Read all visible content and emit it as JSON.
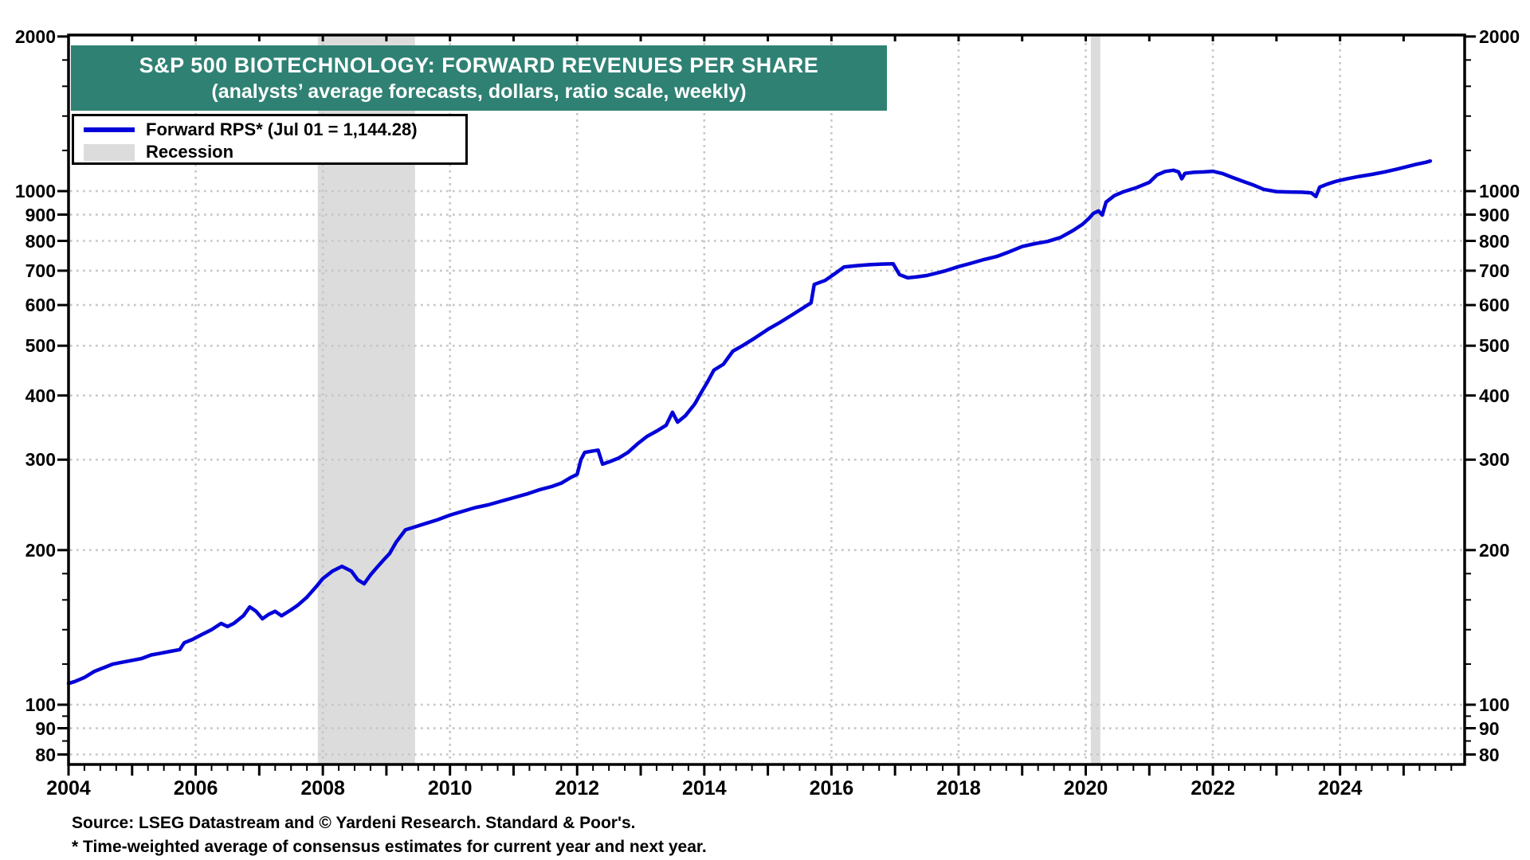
{
  "chart_data": {
    "type": "line",
    "title": "S&P 500 BIOTECHNOLOGY: FORWARD REVENUES PER SHARE",
    "subtitle": "(analysts’ average forecasts, dollars, ratio scale, weekly)",
    "legend": [
      {
        "label": "Forward RPS* (Jul 01 = 1,144.28)",
        "swatch": "line"
      },
      {
        "label": "Recession",
        "swatch": "band"
      }
    ],
    "colors": {
      "banner": "#2F8173",
      "series": "#0202D8",
      "recession": "#DCDCDC",
      "grid": "#C6C6C6",
      "axis": "#000000",
      "background": "#FFFFFF"
    },
    "y_axis": {
      "scale": "log",
      "range": [
        76,
        2050
      ],
      "sides": "both",
      "major_ticks": [
        80,
        90,
        100,
        200,
        300,
        400,
        500,
        600,
        700,
        800,
        900,
        1000,
        2000
      ],
      "minor_ticks": [
        85,
        95,
        120,
        140,
        160,
        180,
        1200,
        1400,
        1600,
        1800
      ]
    },
    "x_axis": {
      "range": [
        2004,
        2025.96
      ],
      "major_tick_step_years": 1,
      "minor_tick_step_years": 0.25,
      "label_years": [
        2004,
        2006,
        2008,
        2010,
        2012,
        2014,
        2016,
        2018,
        2020,
        2022,
        2024
      ]
    },
    "grid": {
      "h_values": [
        80,
        90,
        100,
        200,
        300,
        400,
        500,
        600,
        700,
        800,
        900,
        1000
      ],
      "v_years": [
        2006,
        2008,
        2010,
        2012,
        2014,
        2016,
        2018,
        2020,
        2022,
        2024
      ]
    },
    "recessions": [
      {
        "start": 2007.92,
        "end": 2009.45
      },
      {
        "start": 2020.08,
        "end": 2020.23
      }
    ],
    "series": [
      {
        "name": "Forward RPS",
        "last_point_label": "Jul 01 = 1,144.28",
        "points": [
          [
            2004.0,
            110
          ],
          [
            2004.1,
            111
          ],
          [
            2004.25,
            113
          ],
          [
            2004.4,
            116
          ],
          [
            2004.55,
            118
          ],
          [
            2004.7,
            120
          ],
          [
            2004.85,
            121
          ],
          [
            2005.0,
            122
          ],
          [
            2005.15,
            123
          ],
          [
            2005.3,
            125
          ],
          [
            2005.45,
            126
          ],
          [
            2005.6,
            127
          ],
          [
            2005.75,
            128
          ],
          [
            2005.82,
            132
          ],
          [
            2005.95,
            134
          ],
          [
            2006.1,
            137
          ],
          [
            2006.25,
            140
          ],
          [
            2006.4,
            144
          ],
          [
            2006.5,
            142
          ],
          [
            2006.6,
            144
          ],
          [
            2006.75,
            149
          ],
          [
            2006.85,
            155
          ],
          [
            2006.95,
            152
          ],
          [
            2007.05,
            147
          ],
          [
            2007.15,
            150
          ],
          [
            2007.25,
            152
          ],
          [
            2007.35,
            149
          ],
          [
            2007.5,
            153
          ],
          [
            2007.6,
            156
          ],
          [
            2007.75,
            162
          ],
          [
            2007.9,
            170
          ],
          [
            2008.0,
            176
          ],
          [
            2008.15,
            182
          ],
          [
            2008.3,
            186
          ],
          [
            2008.45,
            182
          ],
          [
            2008.55,
            175
          ],
          [
            2008.65,
            172
          ],
          [
            2008.75,
            179
          ],
          [
            2008.85,
            185
          ],
          [
            2008.95,
            191
          ],
          [
            2009.05,
            197
          ],
          [
            2009.15,
            207
          ],
          [
            2009.3,
            219
          ],
          [
            2009.45,
            222
          ],
          [
            2009.6,
            225
          ],
          [
            2009.8,
            229
          ],
          [
            2010.0,
            234
          ],
          [
            2010.2,
            238
          ],
          [
            2010.4,
            242
          ],
          [
            2010.6,
            245
          ],
          [
            2010.8,
            249
          ],
          [
            2011.0,
            253
          ],
          [
            2011.2,
            257
          ],
          [
            2011.4,
            262
          ],
          [
            2011.6,
            266
          ],
          [
            2011.75,
            270
          ],
          [
            2011.9,
            277
          ],
          [
            2012.0,
            281
          ],
          [
            2012.06,
            300
          ],
          [
            2012.12,
            310
          ],
          [
            2012.25,
            312
          ],
          [
            2012.33,
            313
          ],
          [
            2012.4,
            294
          ],
          [
            2012.5,
            297
          ],
          [
            2012.65,
            302
          ],
          [
            2012.8,
            310
          ],
          [
            2012.95,
            322
          ],
          [
            2013.1,
            333
          ],
          [
            2013.25,
            341
          ],
          [
            2013.4,
            350
          ],
          [
            2013.5,
            371
          ],
          [
            2013.58,
            355
          ],
          [
            2013.7,
            365
          ],
          [
            2013.85,
            385
          ],
          [
            2013.95,
            405
          ],
          [
            2014.05,
            425
          ],
          [
            2014.15,
            448
          ],
          [
            2014.3,
            460
          ],
          [
            2014.45,
            488
          ],
          [
            2014.6,
            500
          ],
          [
            2014.8,
            518
          ],
          [
            2015.0,
            538
          ],
          [
            2015.2,
            556
          ],
          [
            2015.4,
            576
          ],
          [
            2015.55,
            592
          ],
          [
            2015.68,
            606
          ],
          [
            2015.73,
            658
          ],
          [
            2015.9,
            670
          ],
          [
            2016.05,
            690
          ],
          [
            2016.2,
            712
          ],
          [
            2016.4,
            716
          ],
          [
            2016.6,
            719
          ],
          [
            2016.8,
            721
          ],
          [
            2016.97,
            722
          ],
          [
            2017.07,
            688
          ],
          [
            2017.2,
            678
          ],
          [
            2017.35,
            681
          ],
          [
            2017.5,
            685
          ],
          [
            2017.65,
            692
          ],
          [
            2017.8,
            700
          ],
          [
            2018.0,
            713
          ],
          [
            2018.2,
            724
          ],
          [
            2018.4,
            736
          ],
          [
            2018.6,
            746
          ],
          [
            2018.8,
            762
          ],
          [
            2019.0,
            780
          ],
          [
            2019.2,
            790
          ],
          [
            2019.4,
            798
          ],
          [
            2019.6,
            812
          ],
          [
            2019.8,
            838
          ],
          [
            2019.95,
            862
          ],
          [
            2020.05,
            885
          ],
          [
            2020.12,
            905
          ],
          [
            2020.2,
            915
          ],
          [
            2020.26,
            898
          ],
          [
            2020.32,
            952
          ],
          [
            2020.45,
            980
          ],
          [
            2020.6,
            998
          ],
          [
            2020.8,
            1016
          ],
          [
            2021.0,
            1040
          ],
          [
            2021.12,
            1075
          ],
          [
            2021.25,
            1092
          ],
          [
            2021.38,
            1098
          ],
          [
            2021.46,
            1090
          ],
          [
            2021.51,
            1057
          ],
          [
            2021.56,
            1083
          ],
          [
            2021.7,
            1088
          ],
          [
            2021.85,
            1090
          ],
          [
            2022.0,
            1093
          ],
          [
            2022.15,
            1082
          ],
          [
            2022.3,
            1064
          ],
          [
            2022.5,
            1042
          ],
          [
            2022.65,
            1026
          ],
          [
            2022.8,
            1008
          ],
          [
            2023.0,
            998
          ],
          [
            2023.2,
            996
          ],
          [
            2023.4,
            995
          ],
          [
            2023.55,
            992
          ],
          [
            2023.62,
            976
          ],
          [
            2023.68,
            1018
          ],
          [
            2023.8,
            1032
          ],
          [
            2023.95,
            1046
          ],
          [
            2024.1,
            1056
          ],
          [
            2024.3,
            1068
          ],
          [
            2024.5,
            1078
          ],
          [
            2024.7,
            1090
          ],
          [
            2024.9,
            1104
          ],
          [
            2025.05,
            1116
          ],
          [
            2025.2,
            1128
          ],
          [
            2025.35,
            1138
          ],
          [
            2025.42,
            1144.28
          ]
        ]
      }
    ]
  },
  "footer": {
    "source": "Source: LSEG Datastream and © Yardeni Research. Standard & Poor's.",
    "footnote": "* Time-weighted average of consensus estimates for current year and next year."
  }
}
